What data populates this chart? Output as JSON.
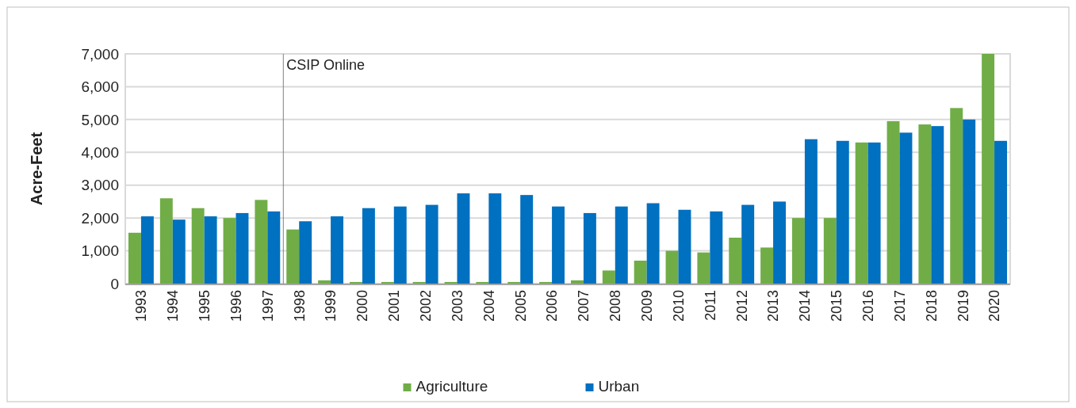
{
  "chart_data": {
    "type": "bar",
    "ylabel": "Acre-Feet",
    "categories": [
      "1993",
      "1994",
      "1995",
      "1996",
      "1997",
      "1998",
      "1999",
      "2000",
      "2001",
      "2002",
      "2003",
      "2004",
      "2005",
      "2006",
      "2007",
      "2008",
      "2009",
      "2010",
      "2011",
      "2012",
      "2013",
      "2014",
      "2015",
      "2016",
      "2017",
      "2018",
      "2019",
      "2020"
    ],
    "series": [
      {
        "name": "Agriculture",
        "color": "#70ad47",
        "values": [
          1550,
          2600,
          2300,
          2000,
          2550,
          1650,
          100,
          50,
          50,
          50,
          50,
          50,
          50,
          50,
          100,
          400,
          700,
          1000,
          950,
          1400,
          1100,
          2000,
          2000,
          4300,
          4950,
          4850,
          5350,
          7000
        ]
      },
      {
        "name": "Urban",
        "color": "#0070c0",
        "values": [
          2050,
          1950,
          2050,
          2150,
          2200,
          1900,
          2050,
          2300,
          2350,
          2400,
          2750,
          2750,
          2700,
          2350,
          2150,
          2350,
          2450,
          2250,
          2200,
          2400,
          2500,
          4400,
          4350,
          4300,
          4600,
          4800,
          5000,
          4350
        ]
      }
    ],
    "ylim": [
      0,
      7000
    ],
    "yticks": [
      {
        "value": 0,
        "label": "0"
      },
      {
        "value": 1000,
        "label": "1,000"
      },
      {
        "value": 2000,
        "label": "2,000"
      },
      {
        "value": 3000,
        "label": "3,000"
      },
      {
        "value": 4000,
        "label": "4,000"
      },
      {
        "value": 5000,
        "label": "5,000"
      },
      {
        "value": 6000,
        "label": "6,000"
      },
      {
        "value": 7000,
        "label": "7,000"
      }
    ],
    "grid": "y",
    "legend": "bottom",
    "ref_lines": [
      {
        "axis": "x",
        "value": "1998",
        "label": "CSIP Online",
        "color": "#808080"
      }
    ]
  }
}
